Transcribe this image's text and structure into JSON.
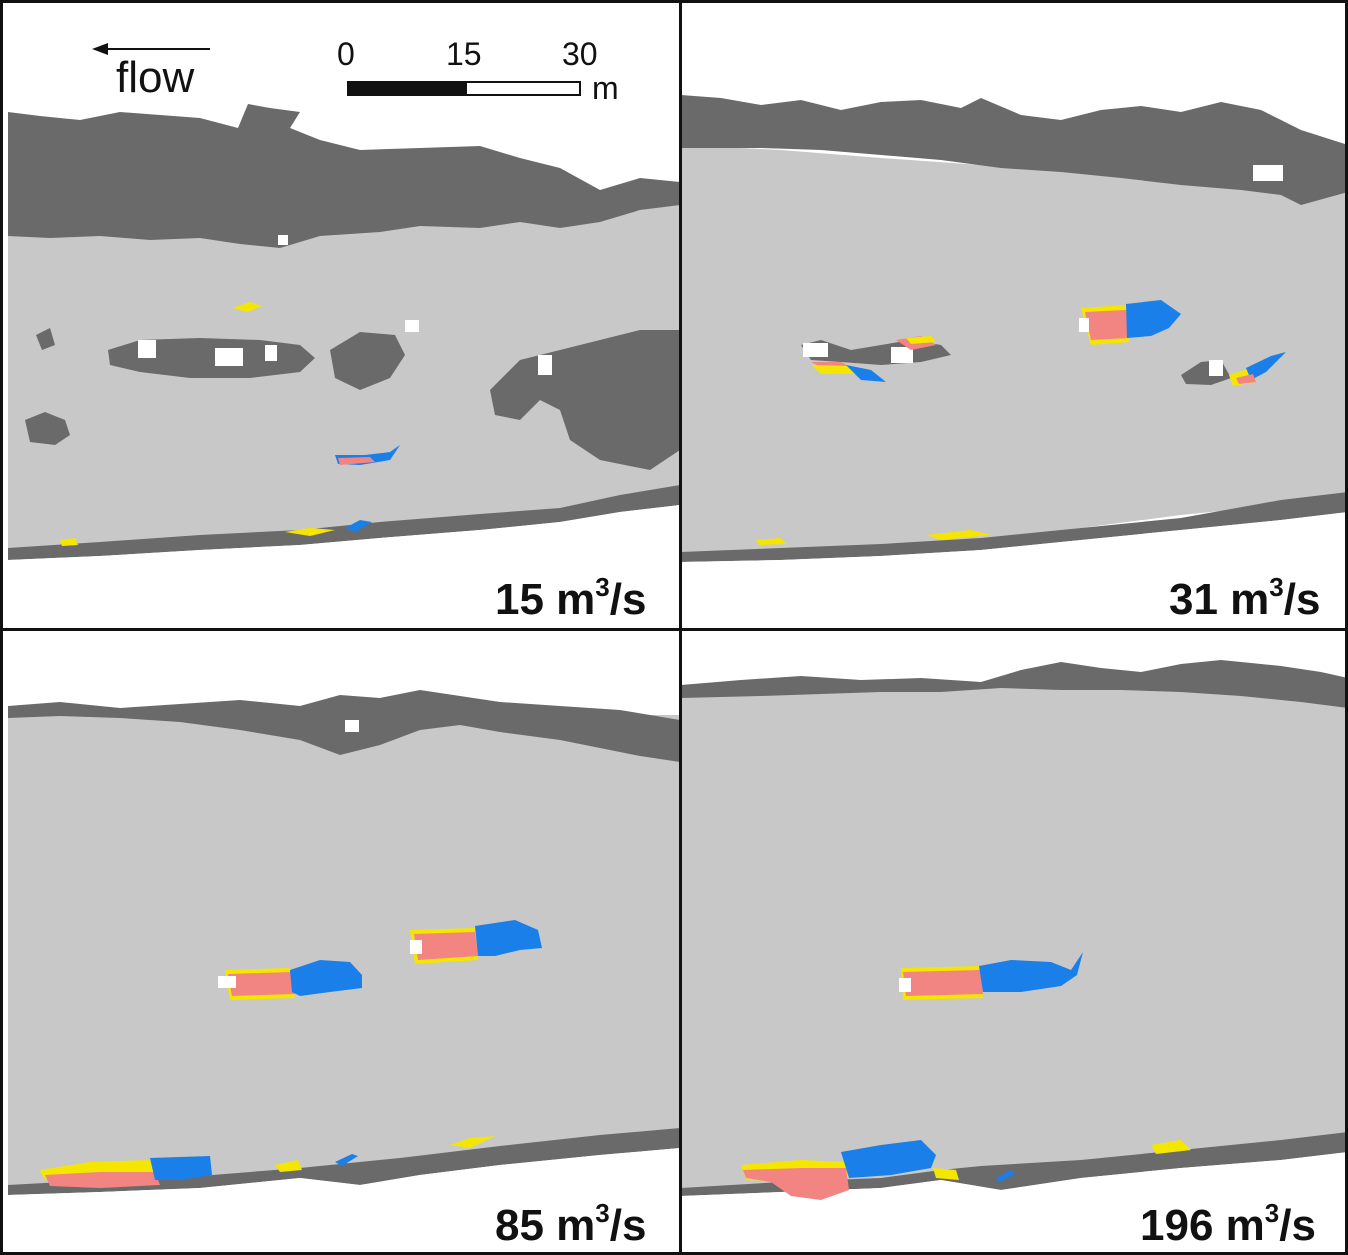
{
  "panels": [
    {
      "id": "top-left",
      "discharge_value": "15 m",
      "discharge_exp": "3",
      "discharge_unit": "/s"
    },
    {
      "id": "top-right",
      "discharge_value": "31 m",
      "discharge_exp": "3",
      "discharge_unit": "/s"
    },
    {
      "id": "bottom-left",
      "discharge_value": "85 m",
      "discharge_exp": "3",
      "discharge_unit": "/s"
    },
    {
      "id": "bottom-right",
      "discharge_value": "196 m",
      "discharge_exp": "3",
      "discharge_unit": "/s"
    }
  ],
  "flow_indicator": {
    "label": "flow",
    "direction": "left"
  },
  "scale_bar": {
    "ticks": [
      "0",
      "15",
      "30"
    ],
    "unit": "m"
  },
  "colors": {
    "channel": "#c8c8c8",
    "bank": "#6a6a6a",
    "background": "#ffffff",
    "blue_zone": "#1a7fe8",
    "pink_zone": "#f28482",
    "yellow_zone": "#f5e600"
  }
}
